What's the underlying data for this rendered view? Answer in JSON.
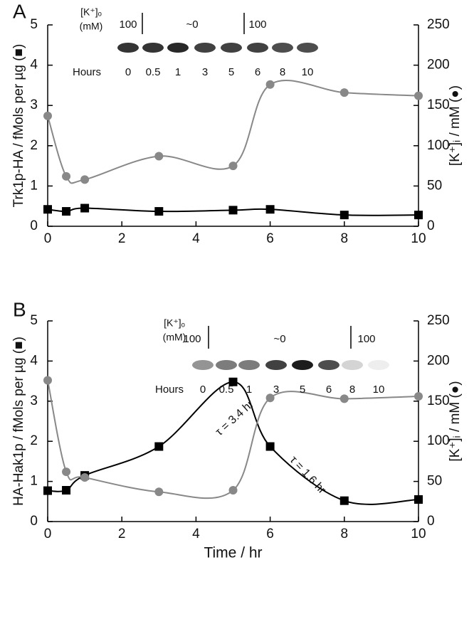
{
  "chart_data": [
    {
      "type": "line",
      "panel": "A",
      "inset": {
        "row_label": "[K⁺]ₒ",
        "row_unit": "(mM)",
        "conditions": [
          "100",
          "~0",
          "100"
        ],
        "hours_label": "Hours",
        "hours": [
          "0",
          "0.5",
          "1",
          "3",
          "5",
          "6",
          "8",
          "10"
        ]
      },
      "x": [
        0,
        0.5,
        1,
        3,
        5,
        6,
        8,
        10
      ],
      "xlim": [
        0,
        10
      ],
      "xticks": [
        0,
        2,
        4,
        6,
        8,
        10
      ],
      "ylim": [
        0,
        5
      ],
      "yticks": [
        0,
        1,
        2,
        3,
        4,
        5
      ],
      "y2lim": [
        0,
        250
      ],
      "y2ticks": [
        0,
        50,
        100,
        150,
        200,
        250
      ],
      "ylabel": "Trk1p-HA / fMols per µg (■)",
      "y2label": "[K⁺]ᵢ / mM (●)",
      "series": [
        {
          "marker": "square",
          "color": "#000000",
          "values": [
            0.42,
            0.37,
            0.45,
            0.37,
            0.4,
            0.42,
            0.28,
            0.28
          ]
        },
        {
          "marker": "circle",
          "color": "#888888",
          "axis": "y2",
          "values": [
            137,
            62,
            58,
            87,
            75,
            176,
            166,
            162
          ]
        }
      ]
    },
    {
      "type": "line",
      "panel": "B",
      "inset": {
        "row_label": "[K⁺]ₒ",
        "row_unit": "(mM)",
        "conditions": [
          "100",
          "~0",
          "100"
        ],
        "hours_label": "Hours",
        "hours": [
          "0",
          "0.5",
          "1",
          "3",
          "5",
          "6",
          "8",
          "10"
        ]
      },
      "x": [
        0,
        0.5,
        1,
        3,
        5,
        6,
        8,
        10
      ],
      "xlim": [
        0,
        10
      ],
      "xticks": [
        0,
        2,
        4,
        6,
        8,
        10
      ],
      "ylim": [
        0,
        5
      ],
      "yticks": [
        0,
        1,
        2,
        3,
        4,
        5
      ],
      "y2lim": [
        0,
        250
      ],
      "y2ticks": [
        0,
        50,
        100,
        150,
        200,
        250
      ],
      "xlabel": "Time / hr",
      "ylabel": "HA-Hak1p / fMols per µg (■)",
      "y2label": "[K⁺]ᵢ / mM (●)",
      "annotations": [
        "τ = 3.4 hr",
        "τ = 1.6 hr"
      ],
      "series": [
        {
          "marker": "square",
          "color": "#000000",
          "values": [
            0.77,
            0.78,
            1.15,
            1.87,
            3.48,
            1.87,
            0.52,
            0.55
          ]
        },
        {
          "marker": "circle",
          "color": "#888888",
          "axis": "y2",
          "values": [
            176,
            62,
            55,
            37,
            39,
            154,
            153,
            156
          ]
        }
      ]
    }
  ]
}
